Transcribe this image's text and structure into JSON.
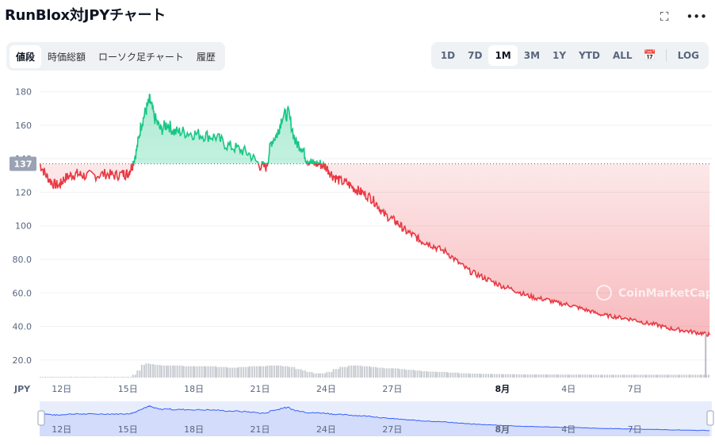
{
  "header": {
    "title": "RunBlox対JPYチャート",
    "expand_icon": "expand-icon",
    "more_icon": "more-icon"
  },
  "tabs": [
    {
      "label": "値段",
      "active": true
    },
    {
      "label": "時価総額",
      "active": false
    },
    {
      "label": "ローソク足チャート",
      "active": false
    },
    {
      "label": "履歴",
      "active": false
    }
  ],
  "ranges": [
    {
      "label": "1D",
      "active": false
    },
    {
      "label": "7D",
      "active": false
    },
    {
      "label": "1M",
      "active": true
    },
    {
      "label": "3M",
      "active": false
    },
    {
      "label": "1Y",
      "active": false
    },
    {
      "label": "YTD",
      "active": false
    },
    {
      "label": "ALL",
      "active": false
    }
  ],
  "log_label": "LOG",
  "colors": {
    "up": "#16c784",
    "down": "#ea3943",
    "nav": "#3861fb"
  },
  "chart_data": {
    "type": "area",
    "currency_label": "JPY",
    "baseline_label": "137",
    "baseline": 137,
    "ylim": [
      10,
      185
    ],
    "y_ticks": [
      20.0,
      40.0,
      60.0,
      80.0,
      100,
      120,
      140,
      160,
      180
    ],
    "y_tick_labels": [
      "20.0",
      "40.0",
      "60.0",
      "80.0",
      "100",
      "120",
      "140",
      "160",
      "180"
    ],
    "x_ticks": [
      {
        "label": "12日",
        "day": 1,
        "bold": false
      },
      {
        "label": "15日",
        "day": 4,
        "bold": false
      },
      {
        "label": "18日",
        "day": 7,
        "bold": false
      },
      {
        "label": "21日",
        "day": 10,
        "bold": false
      },
      {
        "label": "24日",
        "day": 13,
        "bold": false
      },
      {
        "label": "27日",
        "day": 16,
        "bold": false
      },
      {
        "label": "8月",
        "day": 21,
        "bold": true
      },
      {
        "label": "4日",
        "day": 24,
        "bold": false
      },
      {
        "label": "7日",
        "day": 27,
        "bold": false
      }
    ],
    "xlim": [
      0,
      30.5
    ],
    "watermark": "CoinMarketCap",
    "series": [
      {
        "x": [
          0,
          0.3,
          0.6,
          0.9,
          1.1,
          1.4,
          1.7,
          2.0,
          2.5,
          3.0,
          3.4,
          3.8,
          4.0,
          4.2,
          4.4,
          4.6,
          4.8,
          5.0,
          5.2,
          5.5,
          5.8,
          6.1,
          6.5,
          7.0,
          7.5,
          8.0,
          8.5,
          9.0,
          9.5,
          10.0,
          10.3,
          10.5,
          10.8,
          11.0,
          11.3,
          11.6,
          11.9,
          12.1,
          12.4,
          12.7,
          13.0,
          13.3,
          13.6,
          14.0,
          14.3,
          14.6,
          15.0,
          15.3,
          15.6,
          16.0,
          16.3,
          16.6,
          17.0,
          17.3,
          17.6,
          18.0,
          18.5,
          19.0,
          19.5,
          20.0,
          20.5,
          21.0,
          21.5,
          22.0,
          22.5,
          23.0,
          23.5,
          24.0,
          24.5,
          25.0,
          25.5,
          26.0,
          26.5,
          27.0,
          27.5,
          28.0,
          28.5,
          29.0,
          29.5,
          30.0,
          30.4
        ],
        "values": [
          137,
          130,
          125,
          124,
          128,
          130,
          131,
          130,
          130,
          131,
          130,
          131,
          131,
          136,
          145,
          160,
          168,
          175,
          165,
          157,
          161,
          156,
          156,
          155,
          154,
          153,
          148,
          146,
          143,
          136,
          135,
          150,
          155,
          165,
          167,
          150,
          147,
          140,
          137,
          137,
          135,
          130,
          127,
          125,
          122,
          120,
          117,
          113,
          107,
          104,
          101,
          97,
          94,
          91,
          90,
          87,
          84,
          78,
          73,
          70,
          67,
          64,
          62,
          59,
          57,
          56,
          54,
          53,
          51,
          49,
          47,
          46,
          45,
          44,
          42,
          41,
          39,
          38,
          37,
          36,
          35
        ],
        "volume": [
          0.05,
          0.05,
          0.05,
          0.05,
          0.05,
          0.05,
          0.05,
          0.05,
          0.05,
          0.05,
          0.05,
          0.05,
          0.05,
          0.2,
          0.5,
          0.9,
          1.0,
          0.95,
          0.9,
          0.85,
          0.85,
          0.85,
          0.8,
          0.8,
          0.8,
          0.75,
          0.7,
          0.75,
          0.8,
          0.8,
          0.85,
          0.85,
          0.85,
          0.8,
          0.75,
          0.6,
          0.5,
          0.4,
          0.3,
          0.3,
          0.4,
          0.6,
          0.75,
          0.85,
          0.85,
          0.8,
          0.75,
          0.7,
          0.65,
          0.65,
          0.6,
          0.55,
          0.5,
          0.45,
          0.42,
          0.4,
          0.35,
          0.3,
          0.28,
          0.26,
          0.25,
          0.24,
          0.23,
          0.22,
          0.22,
          0.22,
          0.21,
          0.21,
          0.21,
          0.2,
          0.2,
          0.2,
          0.2,
          0.2,
          0.2,
          0.2,
          0.2,
          0.2,
          0.2,
          0.2,
          2.5
        ]
      }
    ]
  }
}
